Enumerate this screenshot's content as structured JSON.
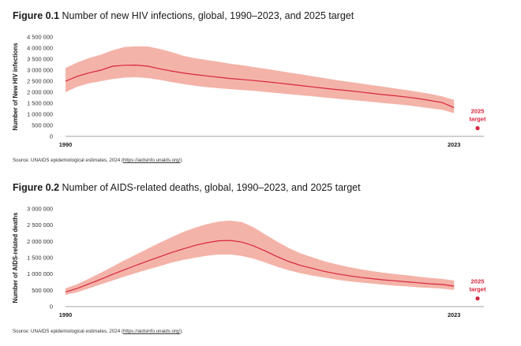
{
  "colors": {
    "line": "#d7263d",
    "band": "#f4b3a8",
    "target": "#d7263d",
    "axis": "#444444"
  },
  "figures": [
    {
      "label": "Figure 0.1",
      "title": "Number of new HIV infections, global, 1990–2023, and 2025 target",
      "source_prefix": "Source: UNAIDS epidemiological estimates, 2024 (",
      "source_link": "https://aidsinfo.unaids.org/",
      "source_suffix": ")."
    },
    {
      "label": "Figure 0.2",
      "title": "Number of AIDS-related deaths, global, 1990–2023, and 2025 target",
      "source_prefix": "Source: UNAIDS epidemiological estimates, 2024 (",
      "source_link": "https://aidsinfo.unaids.org/",
      "source_suffix": ")."
    }
  ],
  "chart_data": [
    {
      "type": "area",
      "ylabel": "Number of New HIV infections",
      "xlabel": "",
      "ylim": [
        0,
        4500000
      ],
      "yticks": [
        0,
        500000,
        1000000,
        1500000,
        2000000,
        2500000,
        3000000,
        3500000,
        4000000,
        4500000
      ],
      "ytick_labels": [
        "0",
        "500 000",
        "1 000 000",
        "1 500 000",
        "2 000 000",
        "2 500 000",
        "3 000 000",
        "3 500 000",
        "4 000 000",
        "4 500 000"
      ],
      "xlim": [
        1990,
        2025
      ],
      "xtick_labels": [
        {
          "x": 1990,
          "label": "1990"
        },
        {
          "x": 2023,
          "label": "2023"
        }
      ],
      "grid": false,
      "x": [
        1990,
        1991,
        1992,
        1993,
        1994,
        1995,
        1996,
        1997,
        1998,
        1999,
        2000,
        2001,
        2002,
        2003,
        2004,
        2005,
        2006,
        2007,
        2008,
        2009,
        2010,
        2011,
        2012,
        2013,
        2014,
        2015,
        2016,
        2017,
        2018,
        2019,
        2020,
        2021,
        2022,
        2023
      ],
      "series": [
        {
          "role": "estimate",
          "values": [
            2500000,
            2720000,
            2880000,
            3000000,
            3180000,
            3220000,
            3230000,
            3180000,
            3060000,
            2960000,
            2870000,
            2800000,
            2740000,
            2680000,
            2620000,
            2580000,
            2530000,
            2480000,
            2420000,
            2360000,
            2300000,
            2240000,
            2180000,
            2120000,
            2070000,
            2010000,
            1950000,
            1890000,
            1840000,
            1780000,
            1710000,
            1620000,
            1530000,
            1300000
          ]
        },
        {
          "role": "upper",
          "values": [
            3100000,
            3350000,
            3550000,
            3700000,
            3900000,
            4050000,
            4080000,
            4070000,
            3960000,
            3820000,
            3650000,
            3540000,
            3460000,
            3380000,
            3290000,
            3220000,
            3140000,
            3060000,
            2980000,
            2890000,
            2810000,
            2720000,
            2640000,
            2550000,
            2480000,
            2400000,
            2320000,
            2250000,
            2170000,
            2100000,
            2010000,
            1920000,
            1810000,
            1650000
          ]
        },
        {
          "role": "lower",
          "values": [
            2000000,
            2250000,
            2400000,
            2500000,
            2600000,
            2660000,
            2680000,
            2640000,
            2560000,
            2460000,
            2370000,
            2290000,
            2230000,
            2180000,
            2140000,
            2100000,
            2060000,
            2010000,
            1960000,
            1910000,
            1860000,
            1810000,
            1760000,
            1710000,
            1660000,
            1610000,
            1560000,
            1510000,
            1460000,
            1410000,
            1340000,
            1270000,
            1200000,
            1050000
          ]
        }
      ],
      "target": {
        "x": 2025,
        "value": 370000,
        "label_line1": "2025",
        "label_line2": "target"
      }
    },
    {
      "type": "area",
      "ylabel": "Number of AIDS-related deaths",
      "xlabel": "",
      "ylim": [
        0,
        3000000
      ],
      "yticks": [
        0,
        500000,
        1000000,
        1500000,
        2000000,
        2500000,
        3000000
      ],
      "ytick_labels": [
        "0",
        "500 000",
        "1 000 000",
        "1 500 000",
        "2 000 000",
        "2 500 000",
        "3 000 000"
      ],
      "xlim": [
        1990,
        2025
      ],
      "xtick_labels": [
        {
          "x": 1990,
          "label": "1990"
        },
        {
          "x": 2023,
          "label": "2023"
        }
      ],
      "grid": false,
      "x": [
        1990,
        1991,
        1992,
        1993,
        1994,
        1995,
        1996,
        1997,
        1998,
        1999,
        2000,
        2001,
        2002,
        2003,
        2004,
        2005,
        2006,
        2007,
        2008,
        2009,
        2010,
        2011,
        2012,
        2013,
        2014,
        2015,
        2016,
        2017,
        2018,
        2019,
        2020,
        2021,
        2022,
        2023
      ],
      "series": [
        {
          "role": "estimate",
          "values": [
            450000,
            560000,
            700000,
            840000,
            990000,
            1130000,
            1270000,
            1400000,
            1530000,
            1660000,
            1770000,
            1880000,
            1960000,
            2020000,
            2030000,
            1980000,
            1860000,
            1700000,
            1530000,
            1380000,
            1260000,
            1170000,
            1080000,
            1010000,
            950000,
            900000,
            860000,
            820000,
            790000,
            760000,
            730000,
            700000,
            680000,
            630000
          ]
        },
        {
          "role": "upper",
          "values": [
            560000,
            690000,
            860000,
            1040000,
            1230000,
            1420000,
            1600000,
            1780000,
            1960000,
            2130000,
            2290000,
            2420000,
            2530000,
            2610000,
            2640000,
            2590000,
            2430000,
            2210000,
            1990000,
            1790000,
            1630000,
            1510000,
            1390000,
            1300000,
            1220000,
            1150000,
            1090000,
            1040000,
            1000000,
            960000,
            920000,
            880000,
            850000,
            800000
          ]
        },
        {
          "role": "lower",
          "values": [
            360000,
            440000,
            560000,
            680000,
            800000,
            920000,
            1030000,
            1140000,
            1240000,
            1350000,
            1430000,
            1500000,
            1560000,
            1600000,
            1600000,
            1550000,
            1470000,
            1350000,
            1220000,
            1110000,
            1020000,
            950000,
            890000,
            830000,
            780000,
            740000,
            710000,
            670000,
            640000,
            620000,
            590000,
            570000,
            550000,
            510000
          ]
        }
      ],
      "target": {
        "x": 2025,
        "value": 250000,
        "label_line1": "2025",
        "label_line2": "target"
      }
    }
  ]
}
